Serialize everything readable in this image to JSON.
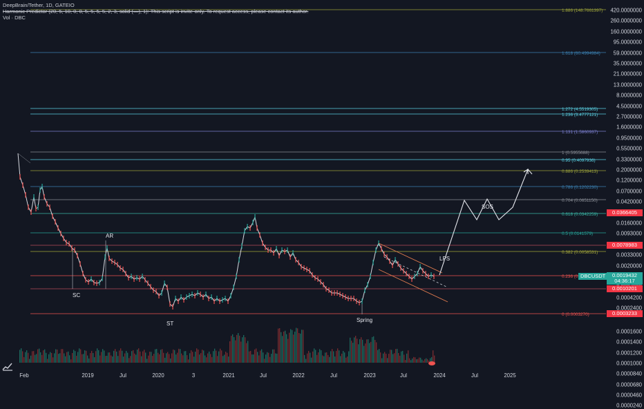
{
  "legend": {
    "symbol": "DeepBrain/Tether, 1D, GATEIO",
    "indicator": "Harmonic Predictor (20, 5, 10, 0, 0, 5, 5, 5, 5, 2, 3, solid (—), 1): This script is invite-only. To request access, please contact its author.",
    "volume": "Vol · DBC"
  },
  "price_axis": [
    "420.0000000",
    "260.0000000",
    "160.0000000",
    "95.0000000",
    "59.0000000",
    "35.0000000",
    "21.0000000",
    "13.0000000",
    "8.0000000",
    "4.5000000",
    "2.7000000",
    "1.6000000",
    "0.9500000",
    "0.5500000",
    "0.3300000",
    "0.2000000",
    "0.1200000",
    "0.0700000",
    "0.0420000",
    "0.0260000",
    "0.0160000",
    "0.0093000",
    "0.0055000",
    "0.0033000",
    "0.0020000",
    "0.0012000",
    "0.0007000",
    "0.0004200",
    "0.0002400"
  ],
  "volume_axis": [
    "0.0001600",
    "0.0001400",
    "0.0001200",
    "0.0001000",
    "0.0000840",
    "0.0000680",
    "0.0000460",
    "0.0000240"
  ],
  "price_badges": {
    "p1": "0.0366405",
    "p2": "0.0078983",
    "last_price": "0.0019432",
    "countdown": "04:36:17",
    "p3": "0.0010201",
    "p4": "0.0003233",
    "symbol": "DBCUSDT"
  },
  "time_axis": [
    "Feb",
    "2019",
    "Jul",
    "2020",
    "3",
    "2021",
    "Jul",
    "2022",
    "Jul",
    "2023",
    "Jul",
    "2024",
    "Jul",
    "2025"
  ],
  "fib_levels": [
    {
      "label": "1.886 (148.7661397)",
      "color": "#9ba23a"
    },
    {
      "label": "1.618 (60.4994984)",
      "color": "#3b82b4"
    },
    {
      "label": "1.272 (4.5519305)",
      "color": "#5ad1e3"
    },
    {
      "label": "1.236 (3.4777121)",
      "color": "#5ad1e3"
    },
    {
      "label": "1.131 (1.5860937)",
      "color": "#7b7fcf"
    },
    {
      "label": "1 (0.5955688)",
      "color": "#8a8e96"
    },
    {
      "label": "0.95 (0.4097936)",
      "color": "#5ad1e3"
    },
    {
      "label": "0.886 (0.2539413)",
      "color": "#9ba23a"
    },
    {
      "label": "0.786 (0.1202230)",
      "color": "#3b82b4"
    },
    {
      "label": "0.704 (0.0651150)",
      "color": "#8a8e96"
    },
    {
      "label": "0.618 (0.0342259)",
      "color": "#3ab7a6"
    },
    {
      "label": "0.5 (0.0141579)",
      "color": "#26a69a"
    },
    {
      "label": "0.382 (0.0058531)",
      "color": "#a5a83a"
    },
    {
      "label": "0.236 (0.",
      "color": "#ef5350"
    },
    {
      "label": "0 (0.0003270)",
      "color": "#ef5350"
    }
  ],
  "annotations": {
    "sc": "SC",
    "ar": "AR",
    "st": "ST",
    "spring": "Spring",
    "lps": "LPS",
    "sos": "SOS"
  },
  "colors": {
    "background": "#131722",
    "up": "#26a69a",
    "down": "#ef5350",
    "text": "#d1d4dc",
    "badge_red": "#f23645",
    "badge_teal": "#26a69a"
  },
  "icons": {
    "logo": "tradingview-logo-icon"
  }
}
